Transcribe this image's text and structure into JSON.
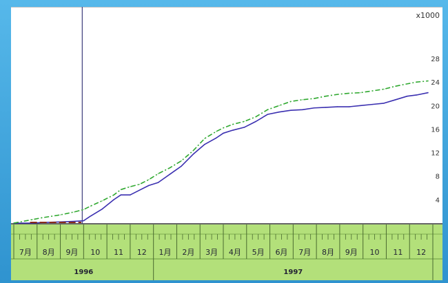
{
  "chart_data": {
    "type": "line",
    "unit_label": "x1000",
    "y_ticks": [
      "28",
      "24",
      "20",
      "16",
      "12",
      "8",
      "4"
    ],
    "ylim": [
      0,
      30
    ],
    "months": [
      "7月",
      "8月",
      "9月",
      "10",
      "11",
      "12",
      "1月",
      "2月",
      "3月",
      "4月",
      "5月",
      "6月",
      "7月",
      "8月",
      "9月",
      "10",
      "11",
      "12"
    ],
    "years": [
      {
        "label": "1996",
        "span": [
          0,
          6
        ]
      },
      {
        "label": "1997",
        "span": [
          6,
          18
        ]
      }
    ],
    "marker_month": 3,
    "x": [
      0.0,
      0.8,
      1.2,
      2.0,
      2.6,
      3.0,
      3.3,
      3.8,
      4.3,
      4.6,
      5.0,
      5.4,
      5.8,
      6.2,
      6.7,
      7.2,
      7.7,
      8.2,
      8.7,
      9.0,
      9.4,
      9.9,
      10.4,
      10.9,
      11.4,
      11.9,
      12.4,
      12.9,
      13.4,
      13.9,
      14.4,
      14.9,
      15.4,
      15.9,
      16.4,
      16.9,
      17.3,
      17.8
    ],
    "series": [
      {
        "style": "solid",
        "color": "#3a2fb0",
        "values": [
          0.0,
          0.0,
          0.1,
          0.2,
          0.3,
          0.4,
          1.2,
          2.4,
          4.0,
          4.8,
          4.8,
          5.6,
          6.4,
          6.9,
          8.3,
          9.7,
          11.7,
          13.4,
          14.5,
          15.3,
          15.8,
          16.3,
          17.3,
          18.5,
          18.9,
          19.2,
          19.3,
          19.6,
          19.7,
          19.8,
          19.8,
          20.0,
          20.2,
          20.4,
          21.0,
          21.6,
          21.8,
          22.2
        ]
      },
      {
        "style": "dash-dot",
        "color": "#2fa82f",
        "values": [
          0.0,
          0.6,
          0.9,
          1.4,
          1.9,
          2.3,
          2.9,
          3.8,
          4.8,
          5.7,
          6.2,
          6.6,
          7.4,
          8.4,
          9.4,
          10.6,
          12.3,
          14.4,
          15.6,
          16.2,
          16.8,
          17.3,
          18.1,
          19.3,
          20.0,
          20.7,
          21.0,
          21.2,
          21.6,
          21.9,
          22.1,
          22.2,
          22.5,
          22.8,
          23.3,
          23.7,
          24.0,
          24.2
        ]
      }
    ],
    "colors": {
      "axis_band": "#b3e07a",
      "axis_text": "#223344",
      "frame": "#3aa0d8"
    }
  }
}
